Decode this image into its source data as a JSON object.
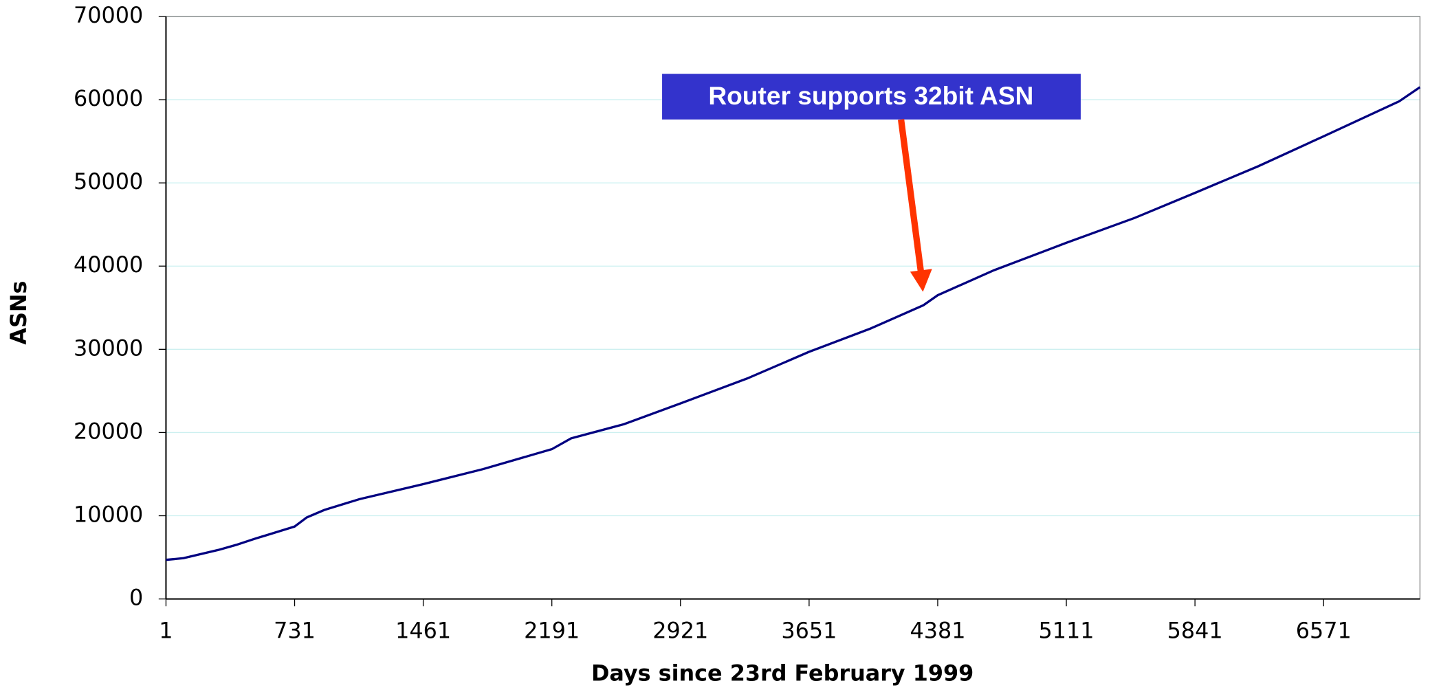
{
  "chart_data": {
    "type": "line",
    "x_label": "Days since 23rd February 1999",
    "y_label": "ASNs",
    "annotation": "Router supports 32bit ASN",
    "x": [
      1,
      100,
      300,
      400,
      500,
      731,
      800,
      900,
      1100,
      1461,
      1800,
      2191,
      2300,
      2600,
      2921,
      3300,
      3651,
      4000,
      4300,
      4381,
      4700,
      5111,
      5500,
      5841,
      6200,
      6571,
      7000,
      7118
    ],
    "series": [
      {
        "name": "ASNs",
        "color": "#000080",
        "values": [
          4700,
          4900,
          5900,
          6500,
          7200,
          8700,
          9800,
          10700,
          12000,
          13800,
          15600,
          18000,
          19300,
          21000,
          23500,
          26500,
          29700,
          32500,
          35300,
          36500,
          39500,
          42800,
          45800,
          48800,
          52000,
          55600,
          59800,
          61500
        ]
      }
    ],
    "xlim": [
      1,
      7118
    ],
    "xticks": [
      1,
      731,
      1461,
      2191,
      2921,
      3651,
      4381,
      5111,
      5841,
      6571
    ],
    "ylim": [
      0,
      70000
    ],
    "yticks": [
      0,
      10000,
      20000,
      30000,
      40000,
      50000,
      60000,
      70000
    ],
    "grid": true,
    "grid_color": "#ccf0f0",
    "annotation_color": "#3333cc",
    "arrow_color": "#ff3300"
  }
}
